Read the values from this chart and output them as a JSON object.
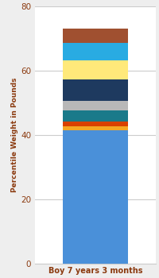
{
  "category": "Boy 7 years 3 months",
  "segments": [
    {
      "value": 41.5,
      "color": "#4a90d9"
    },
    {
      "value": 1.2,
      "color": "#f5a623"
    },
    {
      "value": 1.5,
      "color": "#d94000"
    },
    {
      "value": 3.5,
      "color": "#1a7a8a"
    },
    {
      "value": 3.0,
      "color": "#b8b8b8"
    },
    {
      "value": 6.5,
      "color": "#1e3a5f"
    },
    {
      "value": 6.0,
      "color": "#ffe97a"
    },
    {
      "value": 5.5,
      "color": "#29abe2"
    },
    {
      "value": 4.3,
      "color": "#a05030"
    }
  ],
  "ylabel": "Percentile Weight in Pounds",
  "ylim": [
    0,
    80
  ],
  "yticks": [
    0,
    20,
    40,
    60,
    80
  ],
  "bg_color": "#eeeeee",
  "plot_bg_color": "#ffffff",
  "xlabel_color": "#8b3a0f",
  "ylabel_color": "#8b3a0f",
  "tick_color": "#8b3a0f",
  "grid_color": "#cccccc"
}
